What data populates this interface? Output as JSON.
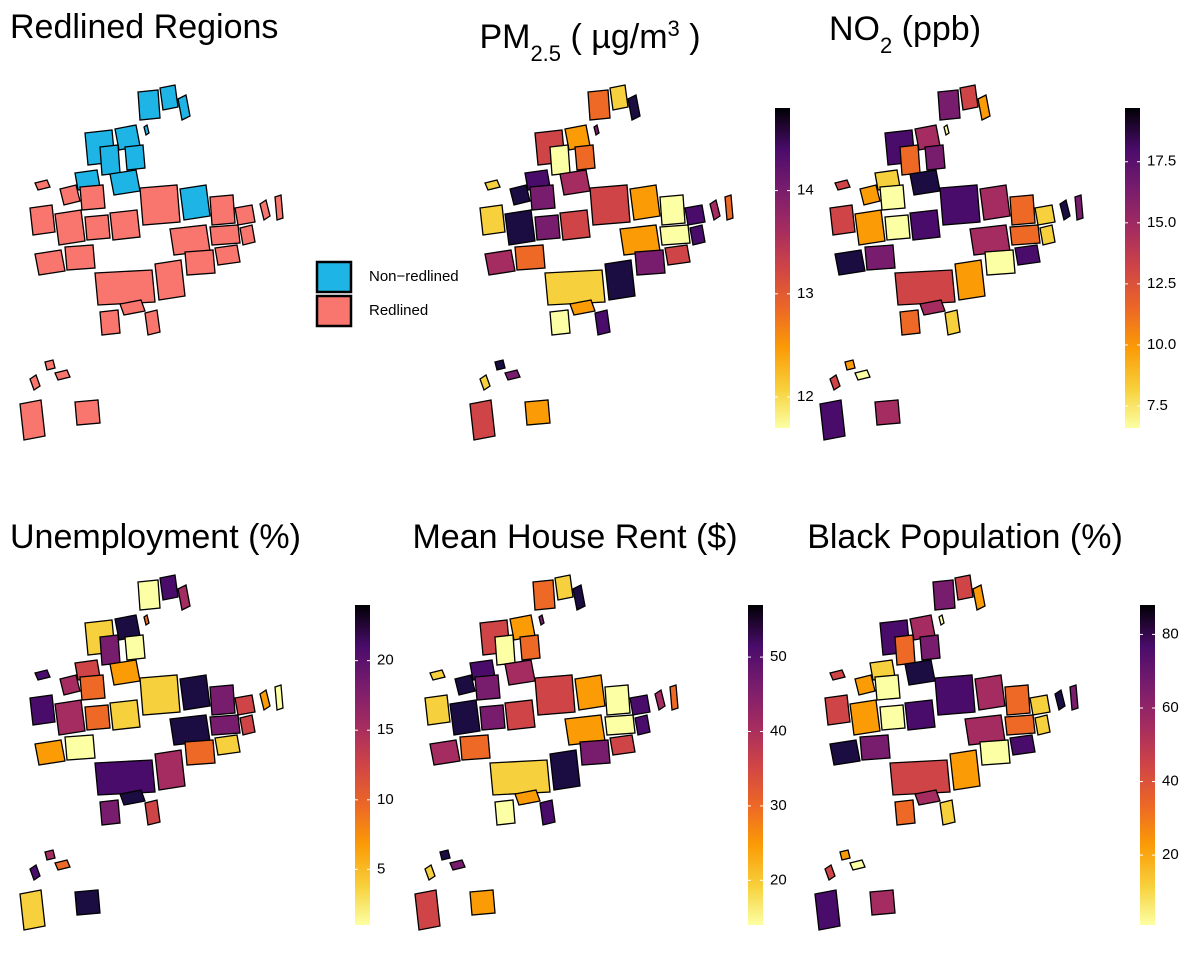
{
  "panels": [
    {
      "title": {
        "text": "Redlined Regions"
      },
      "legend": [
        {
          "name": "Non−redlined",
          "color": "#1fb4e6"
        },
        {
          "name": "Redlined",
          "color": "#f8766d"
        }
      ]
    },
    {
      "title": {
        "text": "PM",
        "sub": "2.5",
        "after": " ( µg/m",
        "sup": "3",
        "end": " )"
      },
      "colorbar": {
        "lim": [
          11.7,
          14.8
        ],
        "ticks": [
          12,
          13,
          14
        ]
      }
    },
    {
      "title": {
        "text": "NO",
        "sub": "2",
        "after": " (ppb)"
      },
      "colorbar": {
        "lim": [
          6.6,
          19.7
        ],
        "ticks": [
          {
            "value": 7.5,
            "label": "7.5"
          },
          {
            "value": 10,
            "label": "10.0"
          },
          {
            "value": 12.5,
            "label": "12.5"
          },
          {
            "value": 15,
            "label": "15.0"
          },
          {
            "value": 17.5,
            "label": "17.5"
          }
        ]
      }
    },
    {
      "title": {
        "text": "Unemployment (%)"
      },
      "colorbar": {
        "lim": [
          1,
          24
        ],
        "ticks": [
          5,
          10,
          15,
          20
        ]
      }
    },
    {
      "title": {
        "text": "Mean House Rent ($)"
      },
      "colorbar": {
        "lim": [
          14,
          57
        ],
        "ticks": [
          20,
          30,
          40,
          50
        ]
      }
    },
    {
      "title": {
        "text": "Black Population (%)"
      },
      "colorbar": {
        "lim": [
          1,
          88
        ],
        "ticks": [
          20,
          40,
          60,
          80
        ]
      }
    }
  ]
}
